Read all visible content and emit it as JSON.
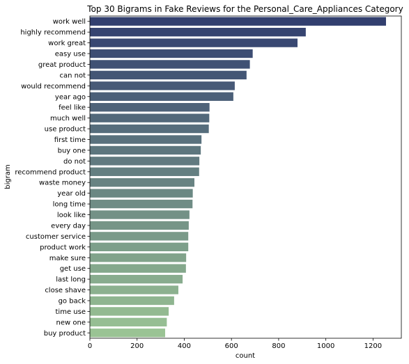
{
  "chart_data": {
    "type": "bar",
    "orientation": "horizontal",
    "title": "Top 30 Bigrams in Fake Reviews for the Personal_Care_Appliances Category",
    "xlabel": "count",
    "ylabel": "bigram",
    "xlim": [
      0,
      1320
    ],
    "xticks": [
      0,
      200,
      400,
      600,
      800,
      1000,
      1200
    ],
    "grid": false,
    "legend": "none",
    "palette_start": "#323f6f",
    "palette_end": "#9ac394",
    "categories": [
      "work well",
      "highly recommend",
      "work great",
      "easy use",
      "great product",
      "can not",
      "would recommend",
      "year ago",
      "feel like",
      "much well",
      "use product",
      "first time",
      "buy one",
      "do not",
      "recommend product",
      "waste money",
      "year old",
      "long time",
      "look like",
      "every day",
      "customer service",
      "product work",
      "make sure",
      "get use",
      "last long",
      "close shave",
      "go back",
      "time use",
      "new one",
      "buy product"
    ],
    "values": [
      1255,
      915,
      880,
      690,
      678,
      664,
      614,
      608,
      507,
      506,
      504,
      473,
      470,
      464,
      463,
      443,
      436,
      435,
      422,
      419,
      417,
      417,
      408,
      407,
      393,
      375,
      357,
      334,
      326,
      319
    ]
  }
}
